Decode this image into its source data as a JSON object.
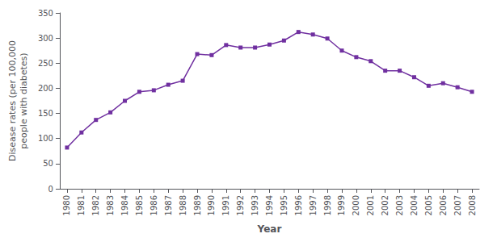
{
  "chart_data": {
    "type": "line",
    "x": [
      1980,
      1981,
      1982,
      1983,
      1984,
      1985,
      1986,
      1987,
      1988,
      1989,
      1990,
      1991,
      1992,
      1993,
      1994,
      1995,
      1996,
      1997,
      1998,
      1999,
      2000,
      2001,
      2002,
      2003,
      2004,
      2005,
      2006,
      2007,
      2008
    ],
    "values": [
      82,
      112,
      137,
      152,
      175,
      193,
      196,
      207,
      215,
      268,
      266,
      286,
      281,
      281,
      287,
      295,
      312,
      307,
      299,
      275,
      262,
      254,
      235,
      235,
      222,
      205,
      210,
      202,
      193
    ],
    "color": "#7030a0",
    "marker": "square",
    "xlabel": "Year",
    "ylabel": "Disease rates (per 100,000\npeople with diabetes)",
    "xlim": [
      1979.5,
      2008.5
    ],
    "xticks": [
      1980,
      1981,
      1982,
      1983,
      1984,
      1985,
      1986,
      1987,
      1988,
      1989,
      1990,
      1991,
      1992,
      1993,
      1994,
      1995,
      1996,
      1997,
      1998,
      1999,
      2000,
      2001,
      2002,
      2003,
      2004,
      2005,
      2006,
      2007,
      2008
    ],
    "ylim": [
      0,
      350
    ],
    "yticks": [
      0,
      50,
      100,
      150,
      200,
      250,
      300,
      350
    ],
    "grid": false
  }
}
